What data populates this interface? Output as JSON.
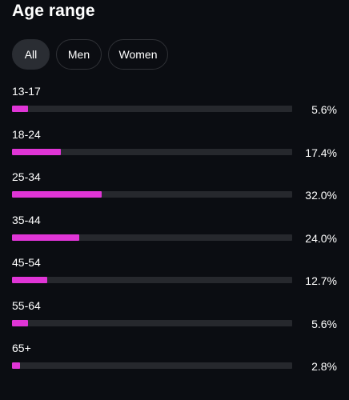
{
  "header": {
    "title": "Age range"
  },
  "tabs": [
    {
      "label": "All",
      "active": true
    },
    {
      "label": "Men",
      "active": false
    },
    {
      "label": "Women",
      "active": false
    }
  ],
  "colors": {
    "background": "#0b0d12",
    "bar_fill": "#e035d6",
    "bar_track": "#26282d"
  },
  "age_groups": [
    {
      "label": "13-17",
      "value_text": "5.6%",
      "percent": 5.6
    },
    {
      "label": "18-24",
      "value_text": "17.4%",
      "percent": 17.4
    },
    {
      "label": "25-34",
      "value_text": "32.0%",
      "percent": 32.0
    },
    {
      "label": "35-44",
      "value_text": "24.0%",
      "percent": 24.0
    },
    {
      "label": "45-54",
      "value_text": "12.7%",
      "percent": 12.7
    },
    {
      "label": "55-64",
      "value_text": "5.6%",
      "percent": 5.6
    },
    {
      "label": "65+",
      "value_text": "2.8%",
      "percent": 2.8
    }
  ]
}
